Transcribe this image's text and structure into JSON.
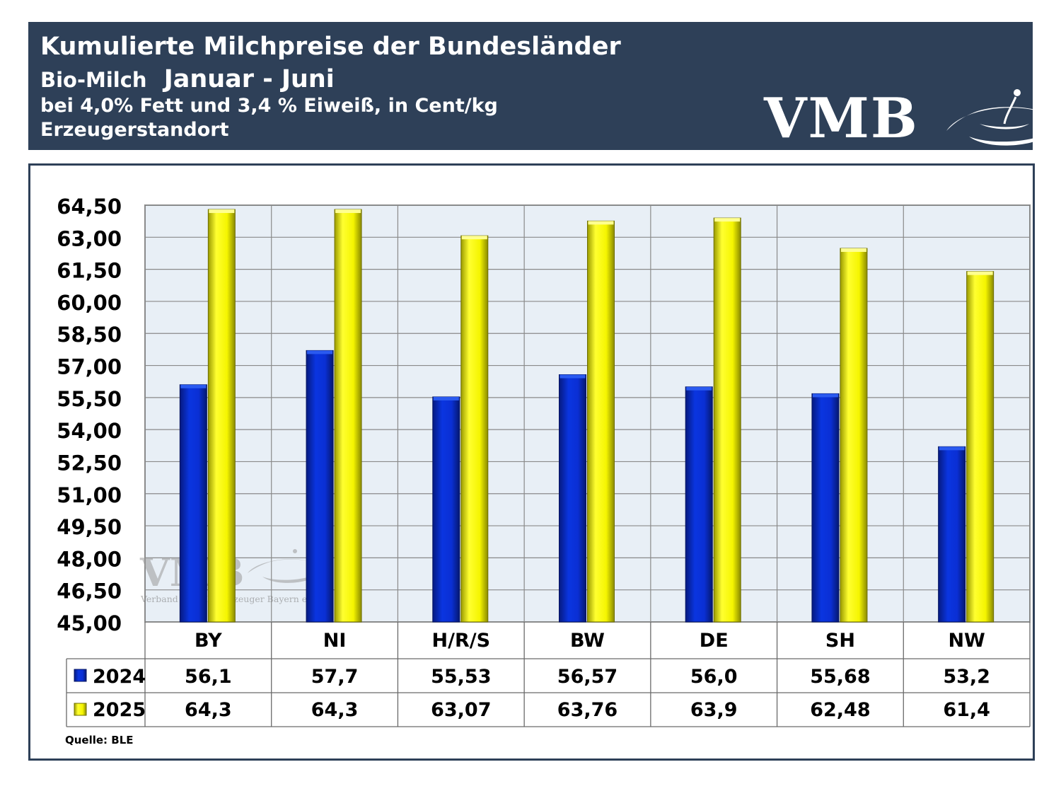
{
  "header": {
    "title": "Kumulierte Milchpreise der Bundesländer",
    "subtitle_product": "Bio-Milch",
    "subtitle_period": "Januar - Juni",
    "unit_line": "bei 4,0% Fett und 3,4 % Eiweiß, in Cent/kg",
    "basis_line": "Erzeugerstandort",
    "logo": "VMB"
  },
  "watermark": {
    "logo": "VMB",
    "caption": "Verband der Milcherzeuger Bayern e.V."
  },
  "source": "Quelle:  BLE",
  "colors": {
    "header_bg": "#2e4058",
    "plot_bg": "#e8eff6",
    "series_2024": "#0a2fd4",
    "series_2025": "#ffff00"
  },
  "chart_data": {
    "type": "bar",
    "categories": [
      "BY",
      "NI",
      "H/R/S",
      "BW",
      "DE",
      "SH",
      "NW"
    ],
    "series": [
      {
        "name": "2024",
        "values": [
          56.1,
          57.7,
          55.53,
          56.57,
          56.0,
          55.68,
          53.2
        ],
        "labels": [
          "56,1",
          "57,7",
          "55,53",
          "56,57",
          "56,0",
          "55,68",
          "53,2"
        ]
      },
      {
        "name": "2025",
        "values": [
          64.3,
          64.3,
          63.07,
          63.76,
          63.9,
          62.48,
          61.4
        ],
        "labels": [
          "64,3",
          "64,3",
          "63,07",
          "63,76",
          "63,9",
          "62,48",
          "61,4"
        ]
      }
    ],
    "ylim": [
      45,
      64.5
    ],
    "yticks": [
      "45,00",
      "46,50",
      "48,00",
      "49,50",
      "51,00",
      "52,50",
      "54,00",
      "55,50",
      "57,00",
      "58,50",
      "60,00",
      "61,50",
      "63,00",
      "64,50"
    ],
    "grid": true,
    "legend": "data-table"
  }
}
